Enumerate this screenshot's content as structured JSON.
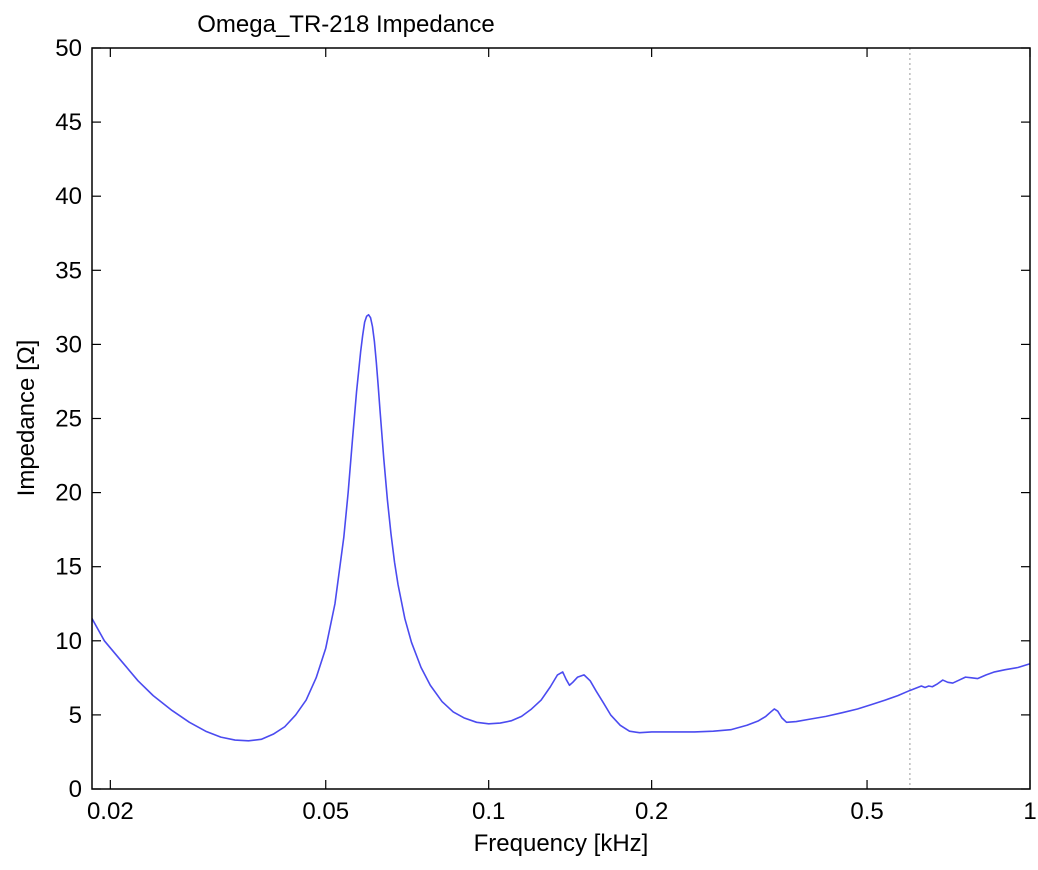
{
  "chart_data": {
    "type": "line",
    "title": "Omega_TR-218 Impedance",
    "xlabel": "Frequency [kHz]",
    "ylabel": "Impedance [Ω]",
    "xscale": "log",
    "xlim": [
      0.0185,
      1.0
    ],
    "ylim": [
      0,
      50
    ],
    "x_ticks": [
      {
        "value": 0.02,
        "label": "0.02"
      },
      {
        "value": 0.05,
        "label": "0.05"
      },
      {
        "value": 0.1,
        "label": "0.1"
      },
      {
        "value": 0.2,
        "label": "0.2"
      },
      {
        "value": 0.5,
        "label": "0.5"
      },
      {
        "value": 1,
        "label": "1"
      }
    ],
    "y_ticks": [
      {
        "value": 0,
        "label": "0"
      },
      {
        "value": 5,
        "label": "5"
      },
      {
        "value": 10,
        "label": "10"
      },
      {
        "value": 15,
        "label": "15"
      },
      {
        "value": 20,
        "label": "20"
      },
      {
        "value": 25,
        "label": "25"
      },
      {
        "value": 30,
        "label": "30"
      },
      {
        "value": 35,
        "label": "35"
      },
      {
        "value": 40,
        "label": "40"
      },
      {
        "value": 45,
        "label": "45"
      },
      {
        "value": 50,
        "label": "50"
      }
    ],
    "grid": false,
    "reference_line_x": 0.6,
    "series_color": "#4b4bf0",
    "series": [
      {
        "x": [
          0.0185,
          0.0195,
          0.021,
          0.0225,
          0.024,
          0.026,
          0.028,
          0.03,
          0.032,
          0.034,
          0.036,
          0.038,
          0.04,
          0.042,
          0.044,
          0.046,
          0.048,
          0.05,
          0.052,
          0.054,
          0.055,
          0.056,
          0.057,
          0.058,
          0.0585,
          0.059,
          0.0595,
          0.06,
          0.0605,
          0.061,
          0.0615,
          0.062,
          0.0625,
          0.063,
          0.064,
          0.065,
          0.066,
          0.067,
          0.068,
          0.07,
          0.072,
          0.075,
          0.078,
          0.082,
          0.086,
          0.09,
          0.095,
          0.1,
          0.105,
          0.11,
          0.115,
          0.12,
          0.125,
          0.13,
          0.134,
          0.137,
          0.139,
          0.141,
          0.143,
          0.146,
          0.15,
          0.154,
          0.158,
          0.163,
          0.168,
          0.175,
          0.182,
          0.19,
          0.2,
          0.22,
          0.24,
          0.26,
          0.28,
          0.3,
          0.315,
          0.325,
          0.332,
          0.337,
          0.342,
          0.348,
          0.355,
          0.37,
          0.39,
          0.42,
          0.45,
          0.48,
          0.51,
          0.54,
          0.57,
          0.6,
          0.62,
          0.63,
          0.64,
          0.65,
          0.66,
          0.675,
          0.69,
          0.705,
          0.72,
          0.74,
          0.76,
          0.78,
          0.8,
          0.83,
          0.86,
          0.9,
          0.95,
          1.0
        ],
        "y": [
          11.5,
          10.0,
          8.6,
          7.3,
          6.3,
          5.3,
          4.5,
          3.9,
          3.5,
          3.3,
          3.25,
          3.35,
          3.7,
          4.2,
          5.0,
          6.0,
          7.5,
          9.5,
          12.5,
          17.0,
          20.0,
          23.5,
          26.8,
          29.5,
          30.6,
          31.5,
          31.9,
          32.0,
          31.8,
          31.2,
          30.2,
          28.8,
          27.2,
          25.5,
          22.3,
          19.5,
          17.2,
          15.3,
          13.8,
          11.5,
          9.9,
          8.2,
          7.0,
          5.9,
          5.2,
          4.8,
          4.5,
          4.4,
          4.45,
          4.6,
          4.9,
          5.4,
          6.0,
          6.9,
          7.7,
          7.9,
          7.4,
          7.0,
          7.2,
          7.55,
          7.7,
          7.3,
          6.6,
          5.8,
          5.0,
          4.3,
          3.9,
          3.8,
          3.85,
          3.85,
          3.85,
          3.9,
          4.0,
          4.3,
          4.6,
          4.9,
          5.2,
          5.4,
          5.25,
          4.8,
          4.5,
          4.55,
          4.7,
          4.9,
          5.15,
          5.4,
          5.7,
          6.0,
          6.3,
          6.65,
          6.85,
          6.95,
          6.85,
          6.95,
          6.9,
          7.1,
          7.35,
          7.2,
          7.15,
          7.35,
          7.55,
          7.5,
          7.45,
          7.7,
          7.9,
          8.05,
          8.2,
          8.45
        ]
      }
    ]
  }
}
